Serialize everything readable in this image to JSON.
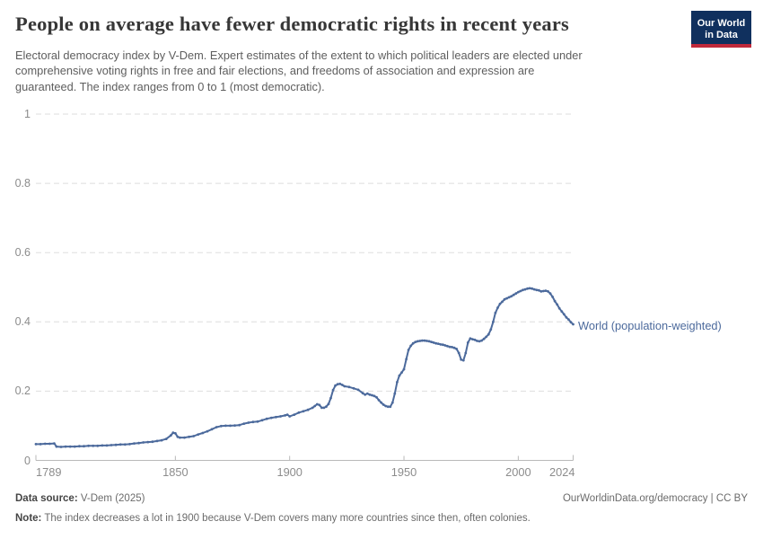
{
  "header": {
    "title": "People on average have fewer democratic rights in recent years",
    "subtitle_lines": [
      "Electoral democracy index by V-Dem. Expert estimates of the extent to which political leaders are elected under",
      "comprehensive voting rights in free and fair elections, and freedoms of association and expression are",
      "guaranteed. The index ranges from 0 to 1 (most democratic)."
    ],
    "logo": {
      "line1": "Our World",
      "line2": "in Data",
      "bg_color": "#10305e",
      "accent_color": "#c0293b"
    }
  },
  "chart_data": {
    "type": "line",
    "title": "Electoral democracy index, World (population-weighted)",
    "xlabel": "",
    "ylabel": "",
    "xlim": [
      1789,
      2024
    ],
    "ylim": [
      0,
      1
    ],
    "grid": "dashed-horizontal",
    "legend_position": "end-of-line",
    "x_ticks": [
      1789,
      1850,
      1900,
      1950,
      2000,
      2024
    ],
    "y_ticks": [
      0,
      0.2,
      0.4,
      0.6,
      0.8,
      1
    ],
    "colors": {
      "gridline": "#dedede",
      "axis": "#b9b9b9",
      "tick_text": "#8c8c8c"
    },
    "series": [
      {
        "name": "World (population-weighted)",
        "color": "#4c6a9c",
        "points": [
          [
            1789,
            0.047
          ],
          [
            1791,
            0.047
          ],
          [
            1793,
            0.048
          ],
          [
            1795,
            0.048
          ],
          [
            1797,
            0.049
          ],
          [
            1798,
            0.04
          ],
          [
            1800,
            0.039
          ],
          [
            1802,
            0.04
          ],
          [
            1804,
            0.04
          ],
          [
            1806,
            0.04
          ],
          [
            1808,
            0.041
          ],
          [
            1810,
            0.041
          ],
          [
            1812,
            0.042
          ],
          [
            1814,
            0.042
          ],
          [
            1816,
            0.042
          ],
          [
            1818,
            0.043
          ],
          [
            1820,
            0.043
          ],
          [
            1822,
            0.044
          ],
          [
            1824,
            0.045
          ],
          [
            1826,
            0.046
          ],
          [
            1828,
            0.046
          ],
          [
            1830,
            0.047
          ],
          [
            1832,
            0.049
          ],
          [
            1834,
            0.05
          ],
          [
            1836,
            0.052
          ],
          [
            1838,
            0.053
          ],
          [
            1840,
            0.054
          ],
          [
            1842,
            0.056
          ],
          [
            1844,
            0.058
          ],
          [
            1846,
            0.062
          ],
          [
            1848,
            0.072
          ],
          [
            1849,
            0.08
          ],
          [
            1850,
            0.078
          ],
          [
            1851,
            0.068
          ],
          [
            1852,
            0.066
          ],
          [
            1854,
            0.066
          ],
          [
            1856,
            0.068
          ],
          [
            1858,
            0.07
          ],
          [
            1860,
            0.075
          ],
          [
            1862,
            0.079
          ],
          [
            1864,
            0.084
          ],
          [
            1866,
            0.09
          ],
          [
            1868,
            0.096
          ],
          [
            1870,
            0.099
          ],
          [
            1872,
            0.1
          ],
          [
            1874,
            0.1
          ],
          [
            1876,
            0.101
          ],
          [
            1878,
            0.102
          ],
          [
            1880,
            0.106
          ],
          [
            1882,
            0.109
          ],
          [
            1884,
            0.111
          ],
          [
            1886,
            0.112
          ],
          [
            1888,
            0.116
          ],
          [
            1890,
            0.12
          ],
          [
            1892,
            0.123
          ],
          [
            1894,
            0.125
          ],
          [
            1896,
            0.127
          ],
          [
            1898,
            0.13
          ],
          [
            1899,
            0.132
          ],
          [
            1900,
            0.127
          ],
          [
            1902,
            0.132
          ],
          [
            1904,
            0.138
          ],
          [
            1906,
            0.142
          ],
          [
            1908,
            0.146
          ],
          [
            1910,
            0.152
          ],
          [
            1911,
            0.157
          ],
          [
            1912,
            0.162
          ],
          [
            1913,
            0.16
          ],
          [
            1914,
            0.152
          ],
          [
            1915,
            0.152
          ],
          [
            1916,
            0.155
          ],
          [
            1917,
            0.163
          ],
          [
            1918,
            0.18
          ],
          [
            1919,
            0.203
          ],
          [
            1920,
            0.216
          ],
          [
            1921,
            0.22
          ],
          [
            1922,
            0.221
          ],
          [
            1923,
            0.218
          ],
          [
            1924,
            0.214
          ],
          [
            1926,
            0.212
          ],
          [
            1928,
            0.208
          ],
          [
            1930,
            0.204
          ],
          [
            1932,
            0.194
          ],
          [
            1933,
            0.19
          ],
          [
            1934,
            0.193
          ],
          [
            1935,
            0.19
          ],
          [
            1936,
            0.188
          ],
          [
            1937,
            0.186
          ],
          [
            1938,
            0.182
          ],
          [
            1939,
            0.174
          ],
          [
            1940,
            0.167
          ],
          [
            1941,
            0.161
          ],
          [
            1942,
            0.157
          ],
          [
            1943,
            0.155
          ],
          [
            1944,
            0.155
          ],
          [
            1945,
            0.167
          ],
          [
            1946,
            0.193
          ],
          [
            1947,
            0.226
          ],
          [
            1948,
            0.245
          ],
          [
            1949,
            0.254
          ],
          [
            1950,
            0.263
          ],
          [
            1951,
            0.292
          ],
          [
            1952,
            0.319
          ],
          [
            1953,
            0.331
          ],
          [
            1954,
            0.338
          ],
          [
            1955,
            0.342
          ],
          [
            1956,
            0.344
          ],
          [
            1957,
            0.345
          ],
          [
            1958,
            0.346
          ],
          [
            1959,
            0.346
          ],
          [
            1960,
            0.345
          ],
          [
            1961,
            0.344
          ],
          [
            1962,
            0.342
          ],
          [
            1963,
            0.34
          ],
          [
            1964,
            0.338
          ],
          [
            1965,
            0.337
          ],
          [
            1966,
            0.335
          ],
          [
            1967,
            0.334
          ],
          [
            1968,
            0.332
          ],
          [
            1969,
            0.33
          ],
          [
            1970,
            0.328
          ],
          [
            1971,
            0.327
          ],
          [
            1972,
            0.325
          ],
          [
            1973,
            0.322
          ],
          [
            1974,
            0.31
          ],
          [
            1975,
            0.291
          ],
          [
            1976,
            0.289
          ],
          [
            1977,
            0.31
          ],
          [
            1978,
            0.34
          ],
          [
            1979,
            0.352
          ],
          [
            1980,
            0.35
          ],
          [
            1981,
            0.348
          ],
          [
            1982,
            0.345
          ],
          [
            1983,
            0.344
          ],
          [
            1984,
            0.346
          ],
          [
            1985,
            0.351
          ],
          [
            1986,
            0.357
          ],
          [
            1987,
            0.364
          ],
          [
            1988,
            0.378
          ],
          [
            1989,
            0.4
          ],
          [
            1990,
            0.426
          ],
          [
            1991,
            0.441
          ],
          [
            1992,
            0.452
          ],
          [
            1993,
            0.458
          ],
          [
            1994,
            0.465
          ],
          [
            1995,
            0.468
          ],
          [
            1996,
            0.471
          ],
          [
            1997,
            0.474
          ],
          [
            1998,
            0.478
          ],
          [
            1999,
            0.482
          ],
          [
            2000,
            0.486
          ],
          [
            2001,
            0.489
          ],
          [
            2002,
            0.492
          ],
          [
            2003,
            0.494
          ],
          [
            2004,
            0.496
          ],
          [
            2005,
            0.497
          ],
          [
            2006,
            0.496
          ],
          [
            2007,
            0.494
          ],
          [
            2008,
            0.492
          ],
          [
            2009,
            0.491
          ],
          [
            2010,
            0.488
          ],
          [
            2011,
            0.489
          ],
          [
            2012,
            0.49
          ],
          [
            2013,
            0.488
          ],
          [
            2014,
            0.482
          ],
          [
            2015,
            0.472
          ],
          [
            2016,
            0.46
          ],
          [
            2017,
            0.45
          ],
          [
            2018,
            0.439
          ],
          [
            2019,
            0.43
          ],
          [
            2020,
            0.422
          ],
          [
            2021,
            0.413
          ],
          [
            2022,
            0.407
          ],
          [
            2023,
            0.399
          ],
          [
            2024,
            0.393
          ]
        ]
      }
    ]
  },
  "footer": {
    "source_label": "Data source:",
    "source_value": " V-Dem (2025)",
    "credit": "OurWorldinData.org/democracy | CC BY",
    "note_label": "Note:",
    "note_value": " The index decreases a lot in 1900 because V-Dem covers many more countries since then, often colonies."
  }
}
